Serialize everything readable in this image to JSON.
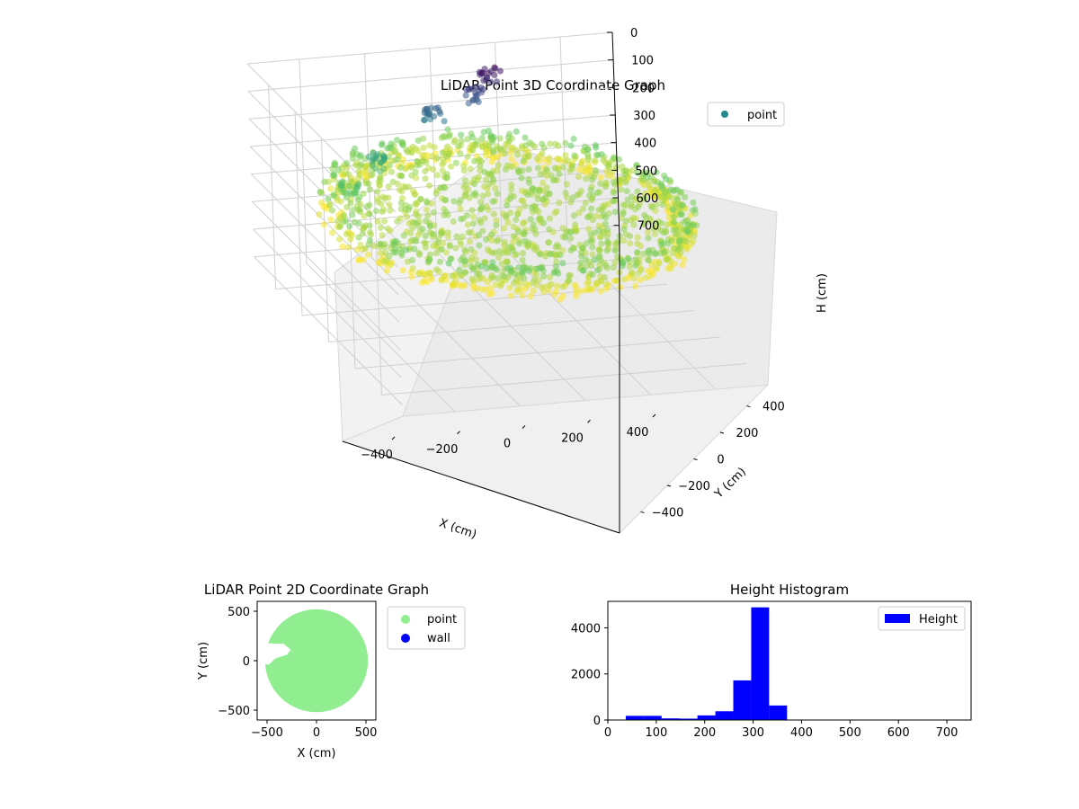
{
  "chart_data": [
    {
      "type": "scatter",
      "projection": "3d",
      "title": "LiDAR Point 3D Coordinate Graph",
      "xlabel": "X (cm)",
      "ylabel": "Y (cm)",
      "zlabel": "H (cm)",
      "x_ticks": [
        -400,
        -200,
        0,
        200,
        400
      ],
      "y_ticks": [
        -400,
        -200,
        0,
        200,
        400
      ],
      "z_ticks": [
        0,
        100,
        200,
        300,
        400,
        500,
        600,
        700
      ],
      "xlim": [
        -560,
        560
      ],
      "ylim": [
        -560,
        560
      ],
      "zlim": [
        740,
        0
      ],
      "z_inverted": true,
      "grid": true,
      "colormap": "viridis",
      "legend": {
        "location": "upper right",
        "entries": [
          "point"
        ]
      },
      "series": [
        {
          "name": "point",
          "color": "#238a8d",
          "shape": "ring",
          "radius_range": [
            470,
            540
          ],
          "height_range": [
            280,
            380
          ],
          "top_arc_deg": [
            20,
            160
          ],
          "clusters": [
            {
              "x": 120,
              "y": 420,
              "h": 40
            },
            {
              "x": 60,
              "y": 380,
              "h": 90
            },
            {
              "x": -80,
              "y": 360,
              "h": 130
            },
            {
              "x": -300,
              "y": 250,
              "h": 230
            },
            {
              "x": -420,
              "y": 150,
              "h": 270
            }
          ]
        }
      ]
    },
    {
      "type": "scatter",
      "title": "LiDAR Point 2D Coordinate Graph",
      "xlabel": "X (cm)",
      "ylabel": "Y (cm)",
      "x_ticks": [
        -500,
        0,
        500
      ],
      "y_ticks": [
        -500,
        0,
        500
      ],
      "xlim": [
        -600,
        600
      ],
      "ylim": [
        -600,
        600
      ],
      "legend": {
        "location": "outside right",
        "entries": [
          "point",
          "wall"
        ]
      },
      "series": [
        {
          "name": "point",
          "color": "#90ee90",
          "shape": "disc",
          "center": [
            0,
            0
          ],
          "radius": 520
        },
        {
          "name": "wall",
          "color": "#0000ff",
          "points": []
        }
      ]
    },
    {
      "type": "bar",
      "subtype": "histogram",
      "title": "Height Histogram",
      "xlabel": "",
      "ylabel": "",
      "x_ticks": [
        0,
        100,
        200,
        300,
        400,
        500,
        600,
        700
      ],
      "y_ticks": [
        0,
        2000,
        4000
      ],
      "xlim": [
        0,
        750
      ],
      "ylim": [
        0,
        5150
      ],
      "legend": {
        "location": "upper right",
        "entries": [
          "Height"
        ]
      },
      "series": [
        {
          "name": "Height",
          "color": "#0000ff",
          "bin_edges": [
            37,
            74,
            111,
            148,
            185,
            222,
            259,
            296,
            333,
            370,
            407,
            444,
            481,
            518,
            555,
            592,
            629,
            666,
            703,
            740
          ],
          "counts": [
            180,
            180,
            70,
            60,
            200,
            380,
            1720,
            4890,
            630,
            0,
            0,
            0,
            0,
            0,
            0,
            0,
            0,
            0,
            0
          ]
        }
      ]
    }
  ]
}
